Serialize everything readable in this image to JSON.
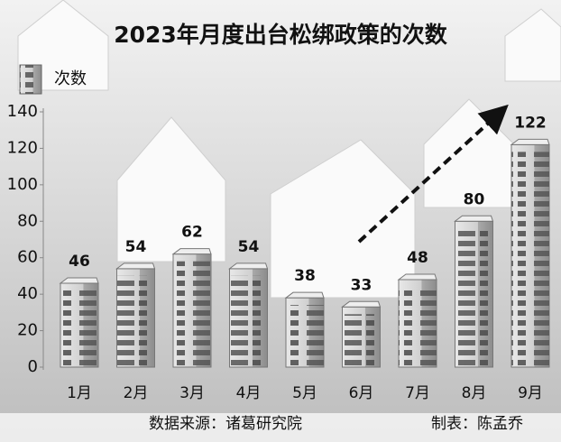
{
  "chart_data": {
    "type": "bar",
    "title": "2023年月度出台松绑政策的次数",
    "legend": "次数",
    "categories": [
      "1月",
      "2月",
      "3月",
      "4月",
      "5月",
      "6月",
      "7月",
      "8月",
      "9月"
    ],
    "values": [
      46,
      54,
      62,
      54,
      38,
      33,
      48,
      80,
      122
    ],
    "ylim": [
      0,
      140
    ],
    "yticks": [
      0,
      20,
      40,
      60,
      80,
      100,
      120,
      140
    ],
    "source": "数据来源：诸葛研究院",
    "author": "制表：陈孟乔"
  }
}
